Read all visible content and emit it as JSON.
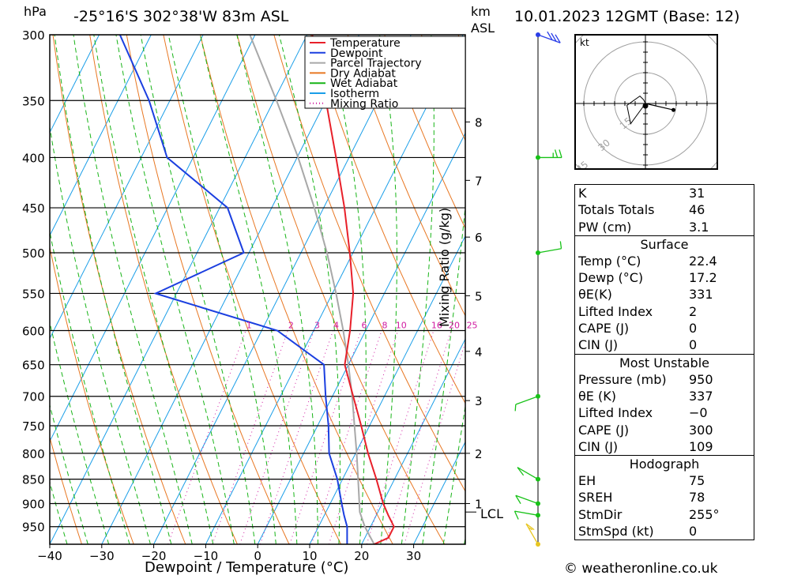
{
  "header": {
    "location": "-25°16'S  302°38'W  83m  ASL",
    "datetime": "10.01.2023  12GMT  (Base: 12)",
    "pressure_unit": "hPa",
    "height_unit_km": "km",
    "height_unit_asl": "ASL"
  },
  "footer": {
    "credit": "© weatheronline.co.uk"
  },
  "axis": {
    "xlabel": "Dewpoint / Temperature (°C)",
    "mixing_label": "Mixing Ratio (g/kg)",
    "lcl_label": "LCL"
  },
  "colors": {
    "temperature": "#e8202a",
    "dewpoint": "#1b3fe0",
    "parcel": "#a8a8a8",
    "dry_adiabat": "#e87722",
    "wet_adiabat": "#17b417",
    "isotherm": "#1a9ee8",
    "mixing_ratio": "#d01aa0",
    "wind": "#17c217"
  },
  "chart_data": {
    "type": "line",
    "title": "",
    "xlabel": "Dewpoint / Temperature (°C)",
    "ylabel": "hPa",
    "xlim": [
      -40,
      40
    ],
    "ylim": [
      990,
      300
    ],
    "x_ticks": [
      -40,
      -30,
      -20,
      -10,
      0,
      10,
      20,
      30
    ],
    "x_tick_labels": [
      "−40",
      "−30",
      "−20",
      "−10",
      "0",
      "10",
      "20",
      "30"
    ],
    "pressure_ticks": [
      300,
      350,
      400,
      450,
      500,
      550,
      600,
      650,
      700,
      750,
      800,
      850,
      900,
      950
    ],
    "km_ticks": [
      {
        "label": "1",
        "p": 900
      },
      {
        "label": "2",
        "p": 800
      },
      {
        "label": "3",
        "p": 707
      },
      {
        "label": "4",
        "p": 630
      },
      {
        "label": "5",
        "p": 553
      },
      {
        "label": "6",
        "p": 482
      },
      {
        "label": "7",
        "p": 422
      },
      {
        "label": "8",
        "p": 368
      }
    ],
    "lcl_pressure": 918,
    "mixing_ratio_labels": [
      "1",
      "2",
      "3",
      "4",
      "6",
      "8",
      "10",
      "16",
      "20",
      "25"
    ],
    "mixing_ratio_values": [
      1,
      2,
      3,
      4,
      6,
      8,
      10,
      16,
      20,
      25
    ],
    "legend": [
      "Temperature",
      "Dewpoint",
      "Parcel Trajectory",
      "Dry Adiabat",
      "Wet Adiabat",
      "Isotherm",
      "Mixing Ratio"
    ],
    "legend_position": "top-center",
    "series": [
      {
        "name": "Temperature",
        "points": [
          [
            990,
            22.4
          ],
          [
            975,
            24.5
          ],
          [
            950,
            24.5
          ],
          [
            925,
            22.3
          ],
          [
            900,
            20.2
          ],
          [
            850,
            16.5
          ],
          [
            800,
            12.4
          ],
          [
            750,
            8.4
          ],
          [
            700,
            4.0
          ],
          [
            650,
            -0.7
          ],
          [
            600,
            -3.0
          ],
          [
            550,
            -6.0
          ],
          [
            500,
            -10.6
          ],
          [
            450,
            -16.0
          ],
          [
            400,
            -22.5
          ],
          [
            350,
            -30.0
          ],
          [
            300,
            -39.0
          ]
        ]
      },
      {
        "name": "Dewpoint",
        "points": [
          [
            990,
            17.2
          ],
          [
            950,
            15.5
          ],
          [
            925,
            13.8
          ],
          [
            900,
            12.2
          ],
          [
            850,
            9.0
          ],
          [
            800,
            4.9
          ],
          [
            750,
            2.1
          ],
          [
            700,
            -1.3
          ],
          [
            650,
            -4.7
          ],
          [
            600,
            -17.0
          ],
          [
            550,
            -44.0
          ],
          [
            500,
            -31.0
          ],
          [
            450,
            -38.5
          ],
          [
            400,
            -55.0
          ],
          [
            350,
            -64.0
          ],
          [
            300,
            -76.0
          ]
        ]
      },
      {
        "name": "Parcel Trajectory",
        "points": [
          [
            990,
            22.4
          ],
          [
            950,
            18.9
          ],
          [
            918,
            16.5
          ],
          [
            900,
            15.6
          ],
          [
            850,
            13.0
          ],
          [
            800,
            10.2
          ],
          [
            750,
            7.1
          ],
          [
            700,
            3.8
          ],
          [
            650,
            0.0
          ],
          [
            600,
            -4.3
          ],
          [
            550,
            -9.3
          ],
          [
            500,
            -15.0
          ],
          [
            450,
            -21.8
          ],
          [
            400,
            -29.8
          ],
          [
            350,
            -39.5
          ],
          [
            300,
            -51.0
          ]
        ]
      }
    ]
  },
  "wind_barbs": [
    {
      "p": 300,
      "dir": 250,
      "speed_kt": 30
    },
    {
      "p": 400,
      "dir": 270,
      "speed_kt": 15
    },
    {
      "p": 500,
      "dir": 280,
      "speed_kt": 10
    },
    {
      "p": 700,
      "dir": 110,
      "speed_kt": 10
    },
    {
      "p": 850,
      "dir": 60,
      "speed_kt": 10
    },
    {
      "p": 900,
      "dir": 70,
      "speed_kt": 10
    },
    {
      "p": 925,
      "dir": 80,
      "speed_kt": 10
    },
    {
      "p": 990,
      "dir": 30,
      "speed_kt": 5
    }
  ],
  "hodograph": {
    "unit_label": "kt",
    "ring_labels": [
      "15",
      "30",
      "45"
    ],
    "trace_kt": [
      [
        0,
        0
      ],
      [
        -1,
        2
      ],
      [
        -3,
        4
      ],
      [
        -10,
        -1
      ],
      [
        -8,
        -11
      ],
      [
        0,
        0
      ]
    ],
    "trace_upper_kt": [
      [
        0,
        0
      ],
      [
        13,
        -3
      ]
    ]
  },
  "tables": {
    "indices": [
      {
        "label": "K",
        "value": "31"
      },
      {
        "label": "Totals Totals",
        "value": "46"
      },
      {
        "label": "PW (cm)",
        "value": "3.1"
      }
    ],
    "surface": {
      "title": "Surface",
      "rows": [
        {
          "label": "Temp (°C)",
          "value": "22.4"
        },
        {
          "label": "Dewp (°C)",
          "value": "17.2"
        },
        {
          "label": "θE(K)",
          "value": "331"
        },
        {
          "label": "Lifted Index",
          "value": "2"
        },
        {
          "label": "CAPE (J)",
          "value": "0"
        },
        {
          "label": "CIN (J)",
          "value": "0"
        }
      ]
    },
    "most_unstable": {
      "title": "Most Unstable",
      "rows": [
        {
          "label": "Pressure (mb)",
          "value": "950"
        },
        {
          "label": "θE (K)",
          "value": "337"
        },
        {
          "label": "Lifted Index",
          "value": "−0"
        },
        {
          "label": "CAPE (J)",
          "value": "300"
        },
        {
          "label": "CIN (J)",
          "value": "109"
        }
      ]
    },
    "hodograph": {
      "title": "Hodograph",
      "rows": [
        {
          "label": "EH",
          "value": "75"
        },
        {
          "label": "SREH",
          "value": "78"
        },
        {
          "label": "StmDir",
          "value": "255°"
        },
        {
          "label": "StmSpd (kt)",
          "value": "0"
        }
      ]
    }
  }
}
